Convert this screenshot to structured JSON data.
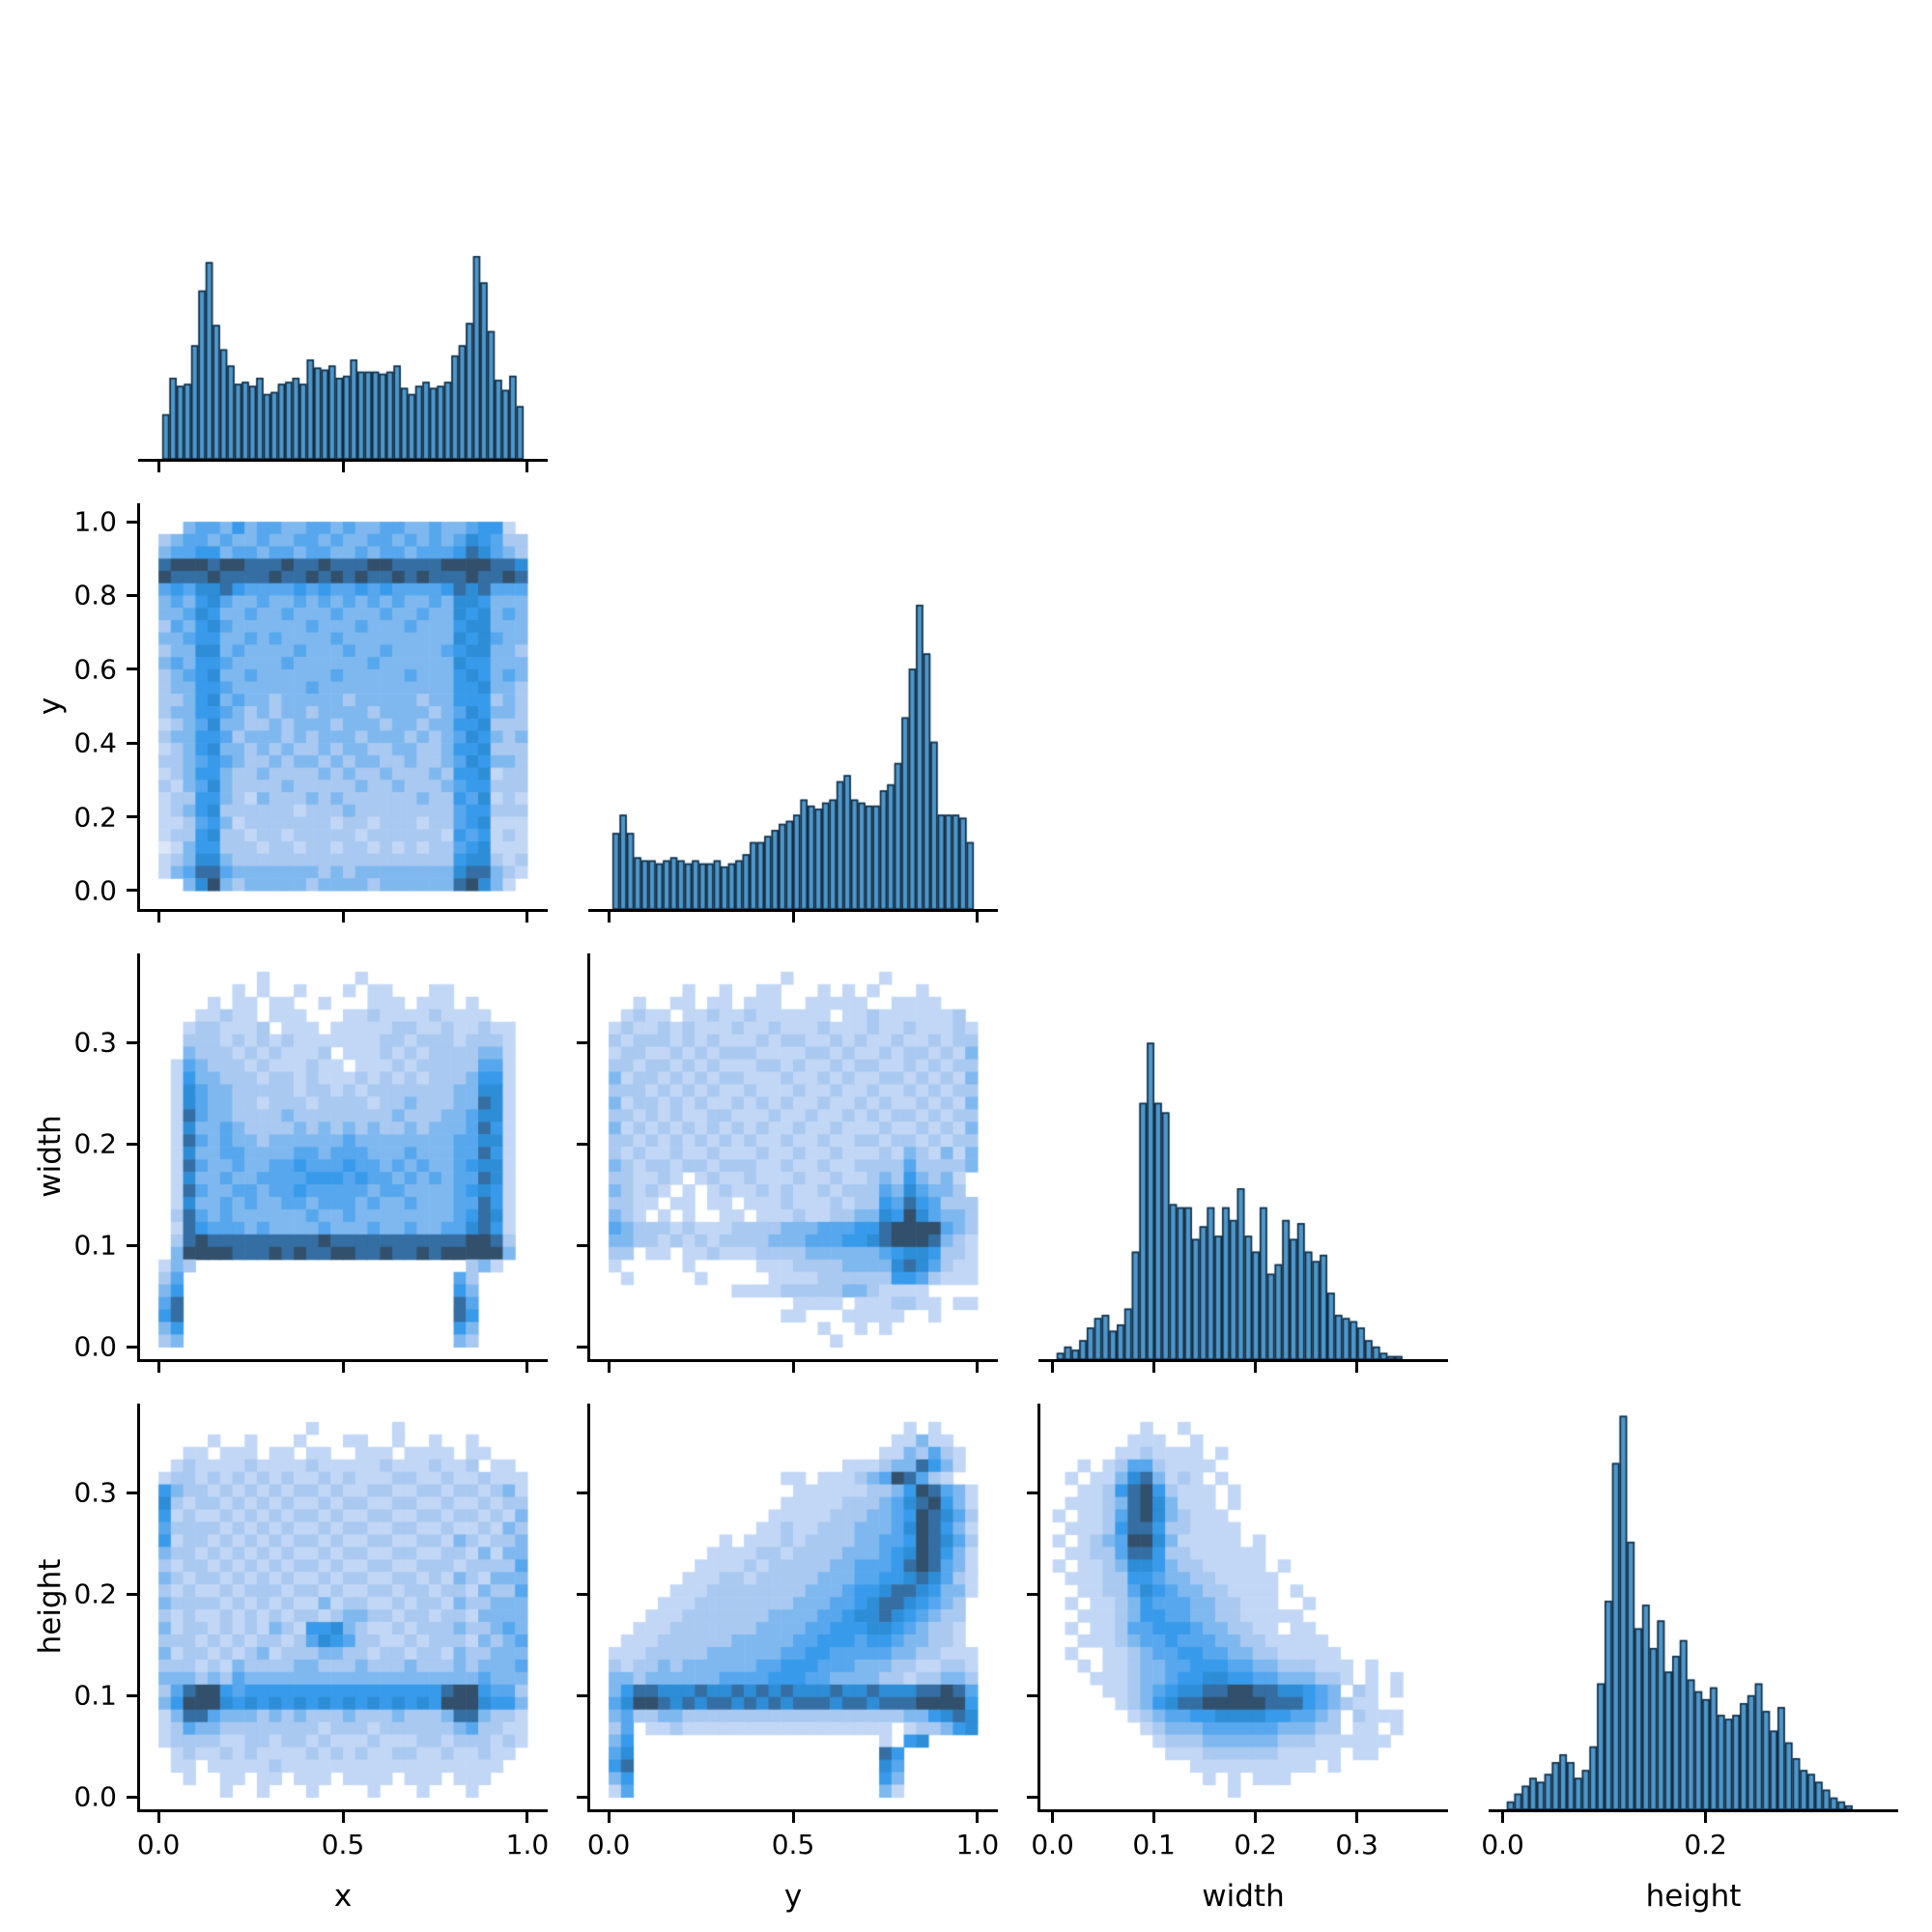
{
  "chart_data": {
    "title": "",
    "layout": "corner pairplot: histograms on diagonal, 2D histograms below diagonal, shared axes, no legend, white background",
    "variables": [
      "x",
      "y",
      "width",
      "height"
    ],
    "colors": {
      "hist_fill": "#4f96c8",
      "hist_edge": "#102a40",
      "spine": "#000000",
      "heatmap_colormap": [
        [
          0.0,
          "#ffffff"
        ],
        [
          0.12,
          "#d8e5f8"
        ],
        [
          0.33,
          "#aac9f1"
        ],
        [
          0.55,
          "#58a8ed"
        ],
        [
          0.7,
          "#2f96e9"
        ],
        [
          0.8,
          "#2e8ad2"
        ],
        [
          0.9,
          "#356b9c"
        ],
        [
          1.0,
          "#32506c"
        ]
      ]
    },
    "axes": {
      "x": {
        "label": "x",
        "range": [
          -0.05,
          1.05
        ],
        "bottom_tick_values": [
          0,
          0.5,
          1
        ],
        "bottom_ticks": [
          "0.0",
          "0.5",
          "1.0"
        ],
        "left_tick_values": [],
        "left_ticks": []
      },
      "y": {
        "label": "y",
        "range": [
          -0.05,
          1.05
        ],
        "bottom_tick_values": [
          0,
          0.5,
          1
        ],
        "bottom_ticks": [
          "0.0",
          "0.5",
          "1.0"
        ],
        "left_tick_values": [
          0,
          0.2,
          0.4,
          0.6,
          0.8,
          1
        ],
        "left_ticks": [
          "0.0",
          "0.2",
          "0.4",
          "0.6",
          "0.8",
          "1.0"
        ]
      },
      "width": {
        "label": "width",
        "range": [
          -0.012,
          0.388
        ],
        "bottom_tick_values": [
          0,
          0.1,
          0.2,
          0.3
        ],
        "bottom_ticks": [
          "0.0",
          "0.1",
          "0.2",
          "0.3"
        ],
        "left_tick_values": [
          0,
          0.1,
          0.2,
          0.3
        ],
        "left_ticks": [
          "0.0",
          "0.1",
          "0.2",
          "0.3"
        ]
      },
      "height": {
        "label": "height",
        "range": [
          -0.012,
          0.388
        ],
        "bottom_tick_values": [
          0,
          0.2
        ],
        "bottom_ticks": [
          "0.0",
          "0.2"
        ],
        "left_tick_values": [
          0,
          0.1,
          0.2,
          0.3
        ],
        "left_ticks": [
          "0.0",
          "0.1",
          "0.2",
          "0.3"
        ]
      }
    },
    "charts": [
      {
        "id": "hist-x",
        "type": "bar",
        "row": 0,
        "col": 0,
        "var": "x",
        "bin_start": 0.01,
        "bin_end": 0.99,
        "max_fraction": 0.5,
        "values": [
          22,
          40,
          36,
          37,
          56,
          83,
          97,
          66,
          54,
          46,
          37,
          38,
          36,
          40,
          32,
          33,
          37,
          38,
          40,
          37,
          49,
          45,
          44,
          46,
          40,
          41,
          49,
          43,
          43,
          43,
          42,
          43,
          46,
          35,
          32,
          36,
          38,
          35,
          36,
          38,
          51,
          56,
          67,
          100,
          87,
          63,
          39,
          34,
          41,
          26
        ]
      },
      {
        "id": "hist-y",
        "type": "bar",
        "row": 1,
        "col": 1,
        "var": "y",
        "bin_start": 0.01,
        "bin_end": 0.99,
        "max_fraction": 0.75,
        "values": [
          25,
          31,
          25,
          17,
          16,
          16,
          15,
          16,
          17,
          16,
          15,
          16,
          15,
          15,
          16,
          14,
          15,
          16,
          18,
          22,
          22,
          24,
          26,
          28,
          29,
          31,
          36,
          34,
          33,
          35,
          36,
          42,
          44,
          36,
          35,
          34,
          34,
          39,
          41,
          48,
          63,
          79,
          100,
          84,
          55,
          31,
          31,
          31,
          30,
          22
        ]
      },
      {
        "id": "hist-width",
        "type": "bar",
        "row": 2,
        "col": 2,
        "var": "width",
        "bin_start": 0.004,
        "bin_end": 0.345,
        "max_fraction": 0.78,
        "values": [
          2,
          4,
          3,
          6,
          10,
          13,
          14,
          9,
          11,
          16,
          34,
          81,
          100,
          81,
          78,
          49,
          48,
          48,
          38,
          42,
          48,
          39,
          48,
          44,
          54,
          39,
          34,
          48,
          27,
          30,
          44,
          38,
          43,
          34,
          31,
          33,
          21,
          14,
          13,
          12,
          10,
          6,
          4,
          2,
          1,
          1
        ]
      },
      {
        "id": "hist-height",
        "type": "bar",
        "row": 3,
        "col": 3,
        "var": "height",
        "bin_start": 0.004,
        "bin_end": 0.345,
        "max_fraction": 0.97,
        "values": [
          2,
          4,
          6,
          8,
          7,
          9,
          12,
          14,
          12,
          8,
          10,
          16,
          32,
          53,
          88,
          100,
          68,
          46,
          52,
          41,
          48,
          35,
          39,
          43,
          33,
          30,
          28,
          31,
          24,
          23,
          24,
          27,
          29,
          32,
          25,
          20,
          26,
          17,
          13,
          10,
          9,
          7,
          5,
          3,
          2,
          1
        ]
      },
      {
        "id": "hist2d-x-y",
        "type": "heatmap",
        "row": 1,
        "col": 0,
        "x": "x",
        "y": "y",
        "x_extent": [
          0,
          1
        ],
        "y_extent": [
          0,
          1
        ],
        "intensity_scale": "characters 1-9 map to relative density 0.11-1.0, '.' = zero count (white)",
        "grid": [
          "..455464554455454455445445662.",
          "345545445445545445545454576533",
          "455664554554554454554555687543",
          "899989988898898889988889999887",
          "988898888988989898898988898898",
          "565778655556565565655556878555",
          "454675445445454545454454776444",
          "445764454454445444544544767454",
          "354675444444544454445444677444",
          "445664454544445444444444767544",
          "344774544445444544544445677443",
          "454665444454444445444444766444",
          "345674454444445444445444676454",
          "344665444444544444444444667443",
          "334674544344444344444344666343",
          "344665434344344443444434576443",
          "234574433434443444344344667333",
          "344665344434344434443434576434",
          "234674434343343443344334667333",
          "334565433434434344334334576443",
          "234664334333343433433343667233",
          "324574333343333343343334566333",
          "233664324333434333333433657232",
          "234673333332333433333333566333",
          "223564233333332332333233567222",
          "233673323323333323333332656232",
          "124663332332332332323233567222",
          "234774333333333333333333677323",
          "245885444444434344444444788432",
          "..479434444434444344444489742."
        ]
      },
      {
        "id": "hist2d-x-width",
        "type": "heatmap",
        "row": 2,
        "col": 0,
        "x": "x",
        "y": "width",
        "x_extent": [
          0,
          1
        ],
        "y_extent": [
          0,
          0.37
        ],
        "intensity_scale": "characters 1-9 map to relative density 0.11-1.0, '.' = zero count (white)",
        "grid": [
          "........2.......2.............",
          "......2.2..2...2.22...22......",
          "....2.22.22..2...222.222.2....",
          "...22322.222...223222232222...",
          "..2332223.222.222223322322322.",
          "..333232323222222233233323332.",
          "..433323232223.22232323333442.",
          ".25433323222322.2223233333552.",
          ".2644333233232223232323334662.",
          ".2754433333233232333333344772.",
          ".2754433233323333233433344872.",
          ".2854433334333333334333445772.",
          ".2744543333434343433434445862.",
          ".2854544344444454444444455772.",
          ".2744554444554555444544455862.",
          ".2854454455655565545454456772.",
          ".2744544555566656554545455872.",
          ".2854455455655555455444456762.",
          ".2744545445545554544544455862.",
          ".3854544444454454444444456872.",
          ".2865554544445444544544557862.",
          ".3898888888889888888888889983.",
          ".4999988898988998898898999994.",
          "243......................342",
          "35......................53",
          "46......................64",
          "58......................85",
          "68......................86",
          "46......................64",
          "34......................43"
        ]
      },
      {
        "id": "hist2d-y-width",
        "type": "heatmap",
        "row": 2,
        "col": 1,
        "x": "y",
        "y": "width",
        "x_extent": [
          0,
          1
        ],
        "y_extent": [
          0,
          0.37
        ],
        "intensity_scale": "characters 1-9 map to relative density 0.11-1.0, '.' = zero count (white)",
        "grid": [
          "..............2.......2.......",
          "......2..2..22...2.2.2...2....",
          "..2..22.22.222..22222..2222...",
          ".2322.223223222222.2232222223.2",
          "232232322232232223222322322232",
          "323332323222323322323223223233",
          "233223232333222233232232332324",
          "332332323222332322323322323233",
          "423323232332223223232233232324",
          "333232323223222322322322323233",
          "423323232232323223223232232324",
          "332323223322232232232323323233",
          "423232323232322322322232232324",
          "332323232323223223223323323233",
          "323223223222322322322232432424",
          "432332332333223223223333533334",
          "332232.2322322232232234364342 3",
          "43232.2.232232322323335475443 4",
          "3322.22.22.2223222323365865333",
          "432.2.2..22.222322334476975443",
          "543332322233334445556689999543",
          "443323232333344455566789998432",
          "33.22.223222333344444456776332",
          "2.....2.....222333344447875322",
          ".2.....2.....22223333336653222",
          "..........2222333334432222",
          "...............2222.2223322.22",
          "..............22...22222..2.",
          ".................2..2.2.....",
          "..................2........."
        ]
      },
      {
        "id": "hist2d-x-height",
        "type": "heatmap",
        "row": 3,
        "col": 0,
        "x": "x",
        "y": "height",
        "x_extent": [
          0,
          1
        ],
        "y_extent": [
          0,
          0.37
        ],
        "intensity_scale": "characters 1-9 map to relative density 0.11-1.0, '.' = zero count (white)",
        "grid": [
          "............2......2..........",
          "....2..2...2...22..2..2..2....",
          "..22.222.22.22..222.2222.22...",
          ".2322223222232222232223223 22.2",
          "233232323232232322233223223222",
          "643323232323323223322332332342",
          "732332323232232332233223223233",
          "623223232323323223322332332324",
          "533332323232232332233223223243",
          "623323232323323223322332432334",
          "433232323232232332233223324244",
          "323323232323323223322333233335",
          "432332323232232332233232432444",
          "323223233323323223323323324335",
          "433332323232242332232332433444",
          "323223232323323443323323324444",
          "423323232432667432232333433454",
          "333232323323576533223233324345",
          "423323234233344332332332433444",
          "333232433334433343334333434445",
          "444343544444444444444444445444",
          "358996566666666666666668996553",
          "469997676767676767676769997664",
          "248854443434333433343334884332",
          "235443333333323332333333453322",
          "233332233233232223222332333232",
          ".2322323222232323223322322322.",
          ".22.222223222222222222222222..",
          "..2..22.22.222.2222.222.222...",
          ".....2..2...2....2...2...2...."
        ]
      },
      {
        "id": "hist2d-y-height",
        "type": "heatmap",
        "row": 3,
        "col": 1,
        "x": "y",
        "y": "height",
        "x_extent": [
          0,
          1
        ],
        "y_extent": [
          0,
          0.37
        ],
        "intensity_scale": "characters 1-9 map to relative density 0.11-1.0, '.' = zero count (white)",
        "grid": [
          "........................2.2...",
          ".......................22422..",
          "......................2243532.",
          "...................2223448642.",
          "..............22.22234598532",
          "...............222222334698542",
          "..............2222233345789642",
          ".............22222333445698753",
          "............223223334445798642",
          ".........2.2223233334455698753",
          "........2222332333344456798642",
          ".......22223233333445556898542",
          "......222332333334445566787532",
          ".....2223333333344456678876442",
          "....2223333333344455678876543 2",
          "...22233333334444556778765433 2",
          "..222333333344445566677654332 2",
          ".2223333334444455666566544332 2",
          "222333334444445566555554433222",
          "323343444444556665554443322332",
          "443444444555566655444433233443",
          "468877787787878777877877788985",
          "579987878878787888788788899996",
          "453344333333333333333333446787",
          "35.22322222222222222222 2334678",
          "46....................2.67",
          "57....................86",
          "68....................75",
          "46....................64",
          "25....................42"
        ]
      },
      {
        "id": "hist2d-width-height",
        "type": "heatmap",
        "row": 3,
        "col": 2,
        "x": "width",
        "y": "height",
        "x_extent": [
          0,
          0.37
        ],
        "y_extent": [
          0,
          0.37
        ],
        "intensity_scale": "characters 1-9 map to relative density 0.11-1.0, '.' = zero count (white)",
        "grid": [
          ".......2..2...................",
          "......222..2..................",
          ".....2232222.2................",
          "..2.235532222.................",
          ".2.224784232.2................",
          "..22368963222.2...............",
          ".222348974222.2...............",
          "2.223589743222................",
          ".22236886332222...............",
          "2.2345997422222.2.............",
          ".2233588633222222.............",
          "2.223477643322222.2...........",
          ".22233665443322222............",
          "..2233576544332222.2..........",
          ".2.223465554433222..2.........",
          "..222346655443322222..........",
          ".2.223556665443322.22.........",
          "..22234556555443322222........",
          ".2..2234556655443322222.......",
          "..2.22344556665544333222.2....",
          "...222344566776655444332 2.2...",
          "....2234567788998877654 32.2...",
          ".....234678899999888654322....",
          "......23455667777665543 3222...",
          ".......2344455555544433 22.2...",
          "........2333444444333222222...",
          ".........22233333322222.22....",
          "...........2222222222.2.......",
          "............2.2.222...........",
          "..............2..............."
        ]
      }
    ]
  }
}
